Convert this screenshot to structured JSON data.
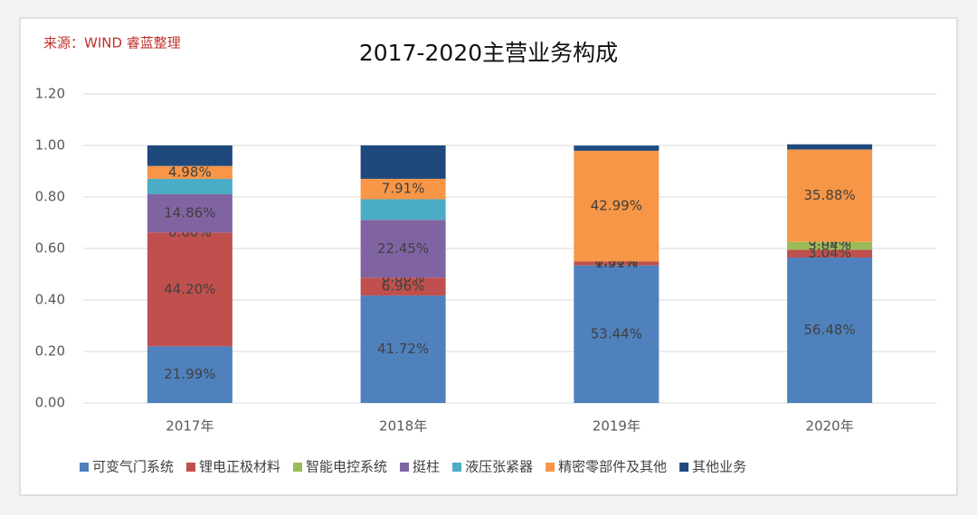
{
  "chart_data": {
    "type": "stacked_bar",
    "title": "2017-2020主营业务构成",
    "source": "来源：WIND 睿蓝整理",
    "categories": [
      "2017年",
      "2018年",
      "2019年",
      "2020年"
    ],
    "series": [
      {
        "name": "可变气门系统",
        "color": "#4f81bd",
        "values": [
          0.2199,
          0.4172,
          0.5344,
          0.5648
        ],
        "value_labels": [
          "21.99%",
          "41.72%",
          "53.44%",
          "56.48%"
        ]
      },
      {
        "name": "锂电正极材料",
        "color": "#c0504d",
        "values": [
          0.442,
          0.0696,
          0.0151,
          0.0304
        ],
        "value_labels": [
          "44.20%",
          "6.96%",
          "1.51%",
          "3.04%"
        ]
      },
      {
        "name": "智能电控系统",
        "color": "#9bbb59",
        "values": [
          0,
          0,
          0,
          0.0304
        ],
        "value_labels": [
          "0.00%",
          "0.00%",
          "0.00%",
          "3.04%"
        ]
      },
      {
        "name": "挺柱",
        "color": "#8064a2",
        "values": [
          0.1486,
          0.2245,
          0,
          0
        ],
        "value_labels": [
          "14.86%",
          "22.45%",
          "0.00%",
          "0.00%"
        ]
      },
      {
        "name": "液压张紧器",
        "color": "#4bacc6",
        "values": [
          0.06,
          0.08,
          0,
          0
        ],
        "value_labels": [
          null,
          null,
          null,
          null
        ]
      },
      {
        "name": "精密零部件及其他",
        "color": "#f79646",
        "values": [
          0.0498,
          0.0791,
          0.4299,
          0.3588
        ],
        "value_labels": [
          "4.98%",
          "7.91%",
          "42.99%",
          "35.88%"
        ]
      },
      {
        "name": "其他业务",
        "color": "#1f497d",
        "values": [
          0.08,
          0.13,
          0.02,
          0.02
        ],
        "value_labels": [
          null,
          null,
          null,
          null
        ]
      }
    ],
    "ylim": [
      0,
      1.2
    ],
    "yticks": [
      {
        "value": 0,
        "label": "0.00"
      },
      {
        "value": 0.2,
        "label": "0.20"
      },
      {
        "value": 0.4,
        "label": "0.40"
      },
      {
        "value": 0.6,
        "label": "0.60"
      },
      {
        "value": 0.8,
        "label": "0.80"
      },
      {
        "value": 1,
        "label": "1.00"
      },
      {
        "value": 1.2,
        "label": "1.20"
      }
    ],
    "grid": true,
    "legend": "bottom"
  }
}
